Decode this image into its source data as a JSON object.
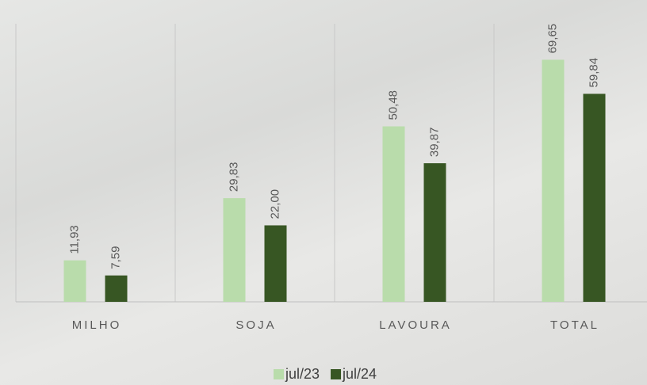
{
  "chart_data": {
    "type": "bar",
    "categories": [
      "MILHO",
      "SOJA",
      "LAVOURA",
      "TOTAL"
    ],
    "series": [
      {
        "name": "jul/23",
        "color": "#b9dcab",
        "values": [
          11.93,
          29.83,
          50.48,
          69.65
        ],
        "value_labels": [
          "11,93",
          "29,83",
          "50,48",
          "69,65"
        ]
      },
      {
        "name": "jul/24",
        "color": "#375623",
        "values": [
          7.59,
          22.0,
          39.87,
          59.84
        ],
        "value_labels": [
          "7,59",
          "22,00",
          "39,87",
          "59,84"
        ]
      }
    ],
    "ylim": [
      0,
      80
    ],
    "legend": "bottom"
  }
}
